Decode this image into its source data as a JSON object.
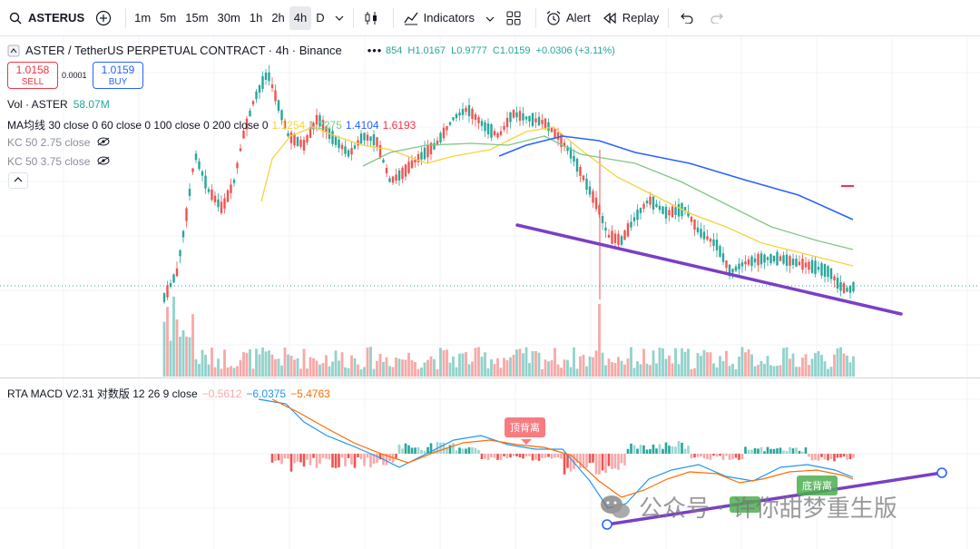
{
  "toolbar": {
    "symbol": "ASTERUS",
    "timeframes": [
      "1m",
      "5m",
      "15m",
      "30m",
      "1h",
      "2h",
      "4h",
      "D"
    ],
    "active_timeframe": "4h",
    "indicators_label": "Indicators",
    "alert_label": "Alert",
    "replay_label": "Replay"
  },
  "legend": {
    "title": "ASTER / TetherUS PERPETUAL CONTRACT · 4h · Binance",
    "ohlc": {
      "open_fragment": "854",
      "high": "H1.0167",
      "low": "L0.9777",
      "close": "C1.0159",
      "change": "+0.0306 (+3.11%)"
    },
    "vol_label": "Vol · ASTER",
    "vol_value": "58.07M",
    "ma_label": "MA均线 30 close 0 60 close 0 100 close 0 200 close 0",
    "ma_values": [
      "1.1254",
      "1.2275",
      "1.4104",
      "1.6193"
    ],
    "ma_colors": [
      "#f5d33b",
      "#81c784",
      "#2962ff",
      "#f23645"
    ],
    "kc1": "KC 50 2.75 close",
    "kc2": "KC 50 3.75 close",
    "macd_label": "RTA MACD V2.31 对数版 12 26 9 close",
    "macd_values": [
      "−0.5612",
      "−6.0375",
      "−5.4763"
    ],
    "macd_colors": [
      "#f7a9a8",
      "#2196f3",
      "#ff6d00"
    ]
  },
  "trade": {
    "sell_price": "1.0158",
    "sell_label": "SELL",
    "spread": "0.0001",
    "buy_price": "1.0159",
    "buy_label": "BUY"
  },
  "annotations": {
    "top_divergence": "顶背离",
    "bottom_divergence": "底背离",
    "watermark": "公众号 · 许你甜梦重生版"
  },
  "colors": {
    "up": "#26a69a",
    "down": "#ef5350",
    "trendline": "#7b3fc4",
    "ma30": "#f5d33b",
    "ma60": "#81c784",
    "ma100": "#2962ff"
  }
}
